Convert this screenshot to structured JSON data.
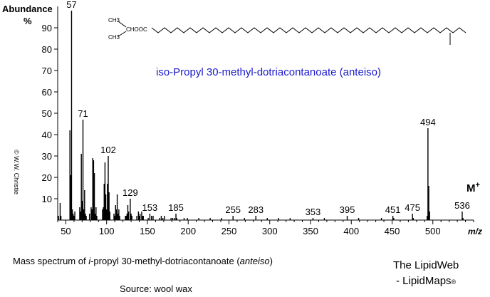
{
  "chart_data": {
    "type": "bar",
    "title": "iso-Propyl 30-methyl-dotriacontanoate  (anteiso)",
    "ylabel_line1": "Abundance",
    "ylabel_line2": "%",
    "xlabel": "m/z",
    "xlim": [
      40,
      550
    ],
    "ylim": [
      0,
      100
    ],
    "xticks": [
      50,
      100,
      150,
      200,
      250,
      300,
      350,
      400,
      450,
      500
    ],
    "yticks": [
      10,
      20,
      30,
      40,
      50,
      60,
      70,
      80,
      90
    ],
    "molecular_ion_label": "M",
    "molecular_ion_sup": "+",
    "structure_labels": [
      "CH3",
      "CHOOC",
      "CH3"
    ],
    "peaks": [
      [
        41,
        2
      ],
      [
        43,
        8
      ],
      [
        44,
        2
      ],
      [
        55,
        42
      ],
      [
        56,
        21
      ],
      [
        57,
        98
      ],
      [
        58,
        5
      ],
      [
        59,
        3
      ],
      [
        60,
        2
      ],
      [
        61,
        4
      ],
      [
        67,
        6
      ],
      [
        68,
        4
      ],
      [
        69,
        31
      ],
      [
        70,
        9
      ],
      [
        71,
        47
      ],
      [
        72,
        5
      ],
      [
        73,
        14
      ],
      [
        74,
        3
      ],
      [
        75,
        2
      ],
      [
        79,
        3
      ],
      [
        81,
        6
      ],
      [
        82,
        5
      ],
      [
        83,
        29
      ],
      [
        84,
        28
      ],
      [
        85,
        22
      ],
      [
        86,
        3
      ],
      [
        87,
        6
      ],
      [
        88,
        2
      ],
      [
        95,
        5
      ],
      [
        96,
        6
      ],
      [
        97,
        17
      ],
      [
        98,
        27
      ],
      [
        99,
        12
      ],
      [
        100,
        5
      ],
      [
        101,
        17
      ],
      [
        102,
        30
      ],
      [
        103,
        13
      ],
      [
        104,
        4
      ],
      [
        109,
        3
      ],
      [
        110,
        2
      ],
      [
        111,
        7
      ],
      [
        112,
        5
      ],
      [
        113,
        12
      ],
      [
        114,
        3
      ],
      [
        115,
        5
      ],
      [
        116,
        2
      ],
      [
        123,
        2
      ],
      [
        124,
        2
      ],
      [
        125,
        3
      ],
      [
        126,
        7
      ],
      [
        127,
        4
      ],
      [
        129,
        10
      ],
      [
        130,
        3
      ],
      [
        131,
        2
      ],
      [
        137,
        2
      ],
      [
        139,
        4
      ],
      [
        140,
        2
      ],
      [
        141,
        3
      ],
      [
        143,
        4
      ],
      [
        144,
        2
      ],
      [
        145,
        2
      ],
      [
        151,
        1
      ],
      [
        153,
        3
      ],
      [
        155,
        2
      ],
      [
        157,
        2
      ],
      [
        165,
        1
      ],
      [
        167,
        2
      ],
      [
        169,
        1
      ],
      [
        171,
        2
      ],
      [
        179,
        1
      ],
      [
        181,
        1
      ],
      [
        183,
        1
      ],
      [
        185,
        3
      ],
      [
        186,
        1
      ],
      [
        195,
        1
      ],
      [
        199,
        1
      ],
      [
        213,
        1
      ],
      [
        227,
        1
      ],
      [
        241,
        1
      ],
      [
        255,
        2
      ],
      [
        269,
        1
      ],
      [
        283,
        2
      ],
      [
        297,
        1
      ],
      [
        311,
        1
      ],
      [
        325,
        1
      ],
      [
        353,
        1
      ],
      [
        367,
        1
      ],
      [
        395,
        2
      ],
      [
        409,
        1
      ],
      [
        437,
        1
      ],
      [
        451,
        2
      ],
      [
        452,
        1
      ],
      [
        475,
        3
      ],
      [
        476,
        1
      ],
      [
        493,
        2
      ],
      [
        494,
        43
      ],
      [
        495,
        16
      ],
      [
        496,
        4
      ],
      [
        536,
        4
      ],
      [
        537,
        1
      ]
    ],
    "labeled_peaks": [
      {
        "mz": 57,
        "label": "57"
      },
      {
        "mz": 71,
        "label": "71"
      },
      {
        "mz": 102,
        "label": "102"
      },
      {
        "mz": 129,
        "label": "129"
      },
      {
        "mz": 153,
        "label": "153"
      },
      {
        "mz": 185,
        "label": "185"
      },
      {
        "mz": 255,
        "label": "255"
      },
      {
        "mz": 283,
        "label": "283"
      },
      {
        "mz": 353,
        "label": "353"
      },
      {
        "mz": 395,
        "label": "395"
      },
      {
        "mz": 451,
        "label": "451"
      },
      {
        "mz": 475,
        "label": "475"
      },
      {
        "mz": 494,
        "label": "494"
      },
      {
        "mz": 536,
        "label": "536"
      }
    ],
    "title_color": "#1a1acc"
  },
  "copyright": "© W.W. Christie",
  "caption": {
    "prefix": "Mass spectrum of ",
    "italic1": "i",
    "middle": "-propyl 30-methyl-dotriacontanoate (",
    "italic2": "anteiso",
    "suffix": ")"
  },
  "source": "Source: wool wax",
  "branding": {
    "line1": "The LipidWeb",
    "line2": "- LipidMaps",
    "mark": "®"
  }
}
